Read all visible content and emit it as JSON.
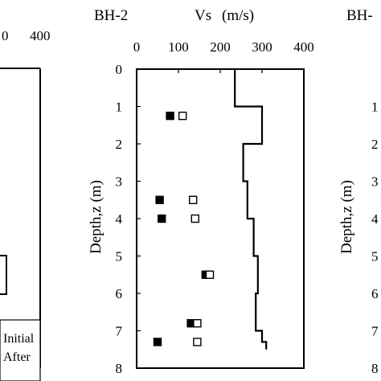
{
  "panels": {
    "left_partial": {
      "x_tick_labels": [
        "0",
        "400"
      ],
      "legend_entries": [
        "Initial",
        "After"
      ]
    },
    "center": {
      "borehole": "BH-2",
      "vs_label": "Vs",
      "unit_label": "(m/s)",
      "ylabel": "Depth,z (m)"
    },
    "right_partial": {
      "borehole": "BH-",
      "ylabel": "Depth,z (m)",
      "y_tick_labels": [
        "1",
        "2",
        "3",
        "4",
        "5",
        "6",
        "7",
        "8"
      ]
    }
  },
  "chart_data": {
    "type": "line+scatter",
    "title": "BH-2",
    "xlabel": "Vs (m/s)",
    "ylabel": "Depth,z (m)",
    "x_axis_position": "top",
    "y_inverted": true,
    "xlim": [
      0,
      400
    ],
    "ylim": [
      0,
      8
    ],
    "x_ticks": [
      "0",
      "100",
      "200",
      "300",
      "400"
    ],
    "y_ticks": [
      "0",
      "1",
      "2",
      "3",
      "4",
      "5",
      "6",
      "7",
      "8"
    ],
    "line_profile": {
      "depth": [
        0,
        1,
        1,
        2,
        2,
        3,
        3,
        4,
        4,
        5,
        5,
        6,
        6,
        7,
        7,
        7.3,
        7.3,
        7.5
      ],
      "vs": [
        235,
        235,
        300,
        300,
        255,
        255,
        265,
        265,
        280,
        280,
        290,
        290,
        285,
        285,
        300,
        300,
        310,
        310
      ]
    },
    "series": [
      {
        "name": "Initial",
        "marker": "filled-square",
        "points": [
          {
            "vs": 80,
            "depth": 1.25
          },
          {
            "vs": 55,
            "depth": 3.5
          },
          {
            "vs": 60,
            "depth": 4.0
          },
          {
            "vs": 165,
            "depth": 5.5
          },
          {
            "vs": 130,
            "depth": 6.8
          },
          {
            "vs": 50,
            "depth": 7.3
          }
        ]
      },
      {
        "name": "After",
        "marker": "open-square",
        "points": [
          {
            "vs": 110,
            "depth": 1.25
          },
          {
            "vs": 135,
            "depth": 3.5
          },
          {
            "vs": 140,
            "depth": 4.0
          },
          {
            "vs": 175,
            "depth": 5.5
          },
          {
            "vs": 145,
            "depth": 6.8
          },
          {
            "vs": 145,
            "depth": 7.3
          }
        ]
      }
    ]
  }
}
